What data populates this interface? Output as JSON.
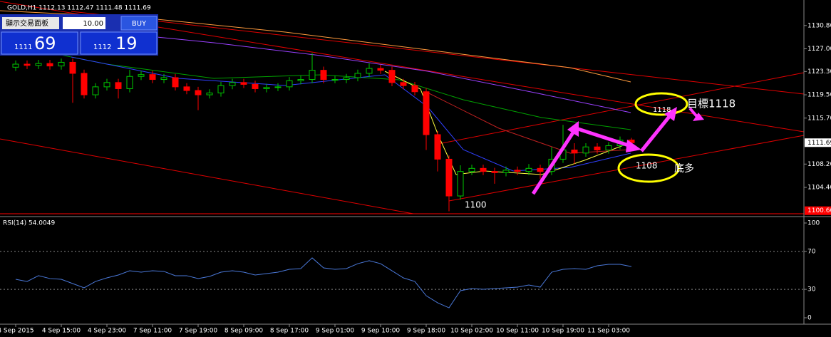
{
  "trade_panel": {
    "toggle": "顯示交易面板",
    "lots": "10.00",
    "buy": "BUY",
    "bid_big": "1111",
    "bid_small": "69",
    "ask_big": "1112",
    "ask_small": "19"
  },
  "annotations": {
    "low": "1100",
    "support": "1108",
    "target_small": "1118",
    "target": "目標1118",
    "buy_low": "底多"
  },
  "chart_data": [
    {
      "type": "candlestick",
      "title": "GOLD,H1  1112.13 1112.47 1111.48 1111.69",
      "categories": [
        "4 Sep 2015",
        null,
        null,
        null,
        "4 Sep 15:00",
        null,
        null,
        null,
        "4 Sep 23:00",
        null,
        null,
        null,
        "7 Sep 11:00",
        null,
        null,
        null,
        "7 Sep 19:00",
        null,
        null,
        null,
        "8 Sep 09:00",
        null,
        null,
        null,
        "8 Sep 17:00",
        null,
        null,
        null,
        "9 Sep 01:00",
        null,
        null,
        null,
        "9 Sep 10:00",
        null,
        null,
        null,
        "9 Sep 18:00",
        null,
        null,
        null,
        "10 Sep 02:00",
        null,
        null,
        null,
        "10 Sep 11:00",
        null,
        null,
        null,
        "10 Sep 19:00",
        null,
        null,
        null,
        "11 Sep 03:00",
        null,
        null
      ],
      "open": [
        1124.0,
        1124.5,
        1124.3,
        1124.6,
        1124.2,
        1124.8,
        1123.0,
        1119.5,
        1120.8,
        1121.5,
        1120.5,
        1122.5,
        1122.8,
        1122.0,
        1122.3,
        1120.8,
        1120.2,
        1119.5,
        1119.8,
        1121.0,
        1121.5,
        1121.2,
        1120.5,
        1120.7,
        1120.8,
        1121.8,
        1122.0,
        1123.5,
        1122.0,
        1122.0,
        1122.3,
        1123.0,
        1123.8,
        1123.5,
        1121.5,
        1121.0,
        1120.0,
        1113.0,
        1109.0,
        1103.0,
        1107.0,
        1107.5,
        1107.0,
        1106.8,
        1107.2,
        1107.0,
        1107.5,
        1107.0,
        1109.0,
        1110.5,
        1110.0,
        1111.0,
        1110.5,
        1111.2,
        1112.13
      ],
      "high": [
        1125.1,
        1125.1,
        1125.2,
        1125.2,
        1125.4,
        1125.4,
        1123.6,
        1121.4,
        1122.1,
        1122.1,
        1123.6,
        1123.4,
        1123.4,
        1122.9,
        1122.9,
        1121.4,
        1120.8,
        1120.4,
        1121.6,
        1122.1,
        1122.1,
        1121.8,
        1121.3,
        1121.4,
        1122.4,
        1122.6,
        1126.3,
        1124.1,
        1122.6,
        1122.9,
        1123.6,
        1124.6,
        1124.4,
        1124.1,
        1122.1,
        1121.6,
        1120.6,
        1113.6,
        1109.6,
        1108.0,
        1108.1,
        1108.1,
        1107.6,
        1107.8,
        1107.8,
        1108.2,
        1108.1,
        1111.0,
        1114.6,
        1111.6,
        1111.6,
        1111.6,
        1111.8,
        1112.7,
        1112.47
      ],
      "low": [
        1123.4,
        1123.7,
        1123.7,
        1123.6,
        1123.6,
        1118.2,
        1118.9,
        1118.9,
        1120.2,
        1118.9,
        1119.9,
        1121.9,
        1121.4,
        1121.4,
        1120.2,
        1119.6,
        1117.0,
        1118.9,
        1119.2,
        1120.4,
        1120.6,
        1119.9,
        1119.9,
        1120.1,
        1120.2,
        1121.2,
        1121.4,
        1121.4,
        1121.4,
        1121.4,
        1121.7,
        1122.4,
        1122.9,
        1120.9,
        1120.4,
        1119.4,
        1110.5,
        1107.0,
        1100.5,
        1102.4,
        1106.4,
        1106.4,
        1105.0,
        1106.2,
        1106.4,
        1106.4,
        1105.8,
        1106.4,
        1108.4,
        1108.2,
        1109.4,
        1109.9,
        1109.9,
        1110.6,
        1111.48
      ],
      "close": [
        1124.5,
        1124.3,
        1124.6,
        1124.2,
        1124.8,
        1123.0,
        1119.5,
        1120.8,
        1121.5,
        1120.5,
        1122.5,
        1122.8,
        1122.0,
        1122.3,
        1120.8,
        1120.2,
        1119.5,
        1119.8,
        1121.0,
        1121.5,
        1121.2,
        1120.5,
        1120.7,
        1120.8,
        1121.8,
        1122.0,
        1123.5,
        1122.0,
        1122.0,
        1122.3,
        1123.0,
        1123.8,
        1123.5,
        1121.5,
        1121.0,
        1120.0,
        1113.0,
        1109.0,
        1103.0,
        1107.0,
        1107.5,
        1107.0,
        1106.8,
        1107.2,
        1107.0,
        1107.5,
        1107.0,
        1109.0,
        1110.5,
        1110.0,
        1111.0,
        1110.5,
        1111.2,
        1112.1,
        1111.69
      ],
      "up_color": "#00c800",
      "down_color": "#ff0000",
      "ylim": [
        1100.1,
        1133.8
      ],
      "yticks": [
        {
          "value": 1130.8,
          "label": "1130.80"
        },
        {
          "value": 1127,
          "label": "1127.00"
        },
        {
          "value": 1123.3,
          "label": "1123.30"
        },
        {
          "value": 1119.5,
          "label": "1119.50"
        },
        {
          "value": 1115.7,
          "label": "1115.70"
        },
        {
          "value": 1108.2,
          "label": "1108.20"
        },
        {
          "value": 1104.4,
          "label": "1104.40"
        }
      ],
      "markers": [
        {
          "value": 1111.69,
          "label": "1111.69",
          "background": "#ffffff",
          "color": "#000000"
        },
        {
          "value": 1100.6,
          "label": "1100.60",
          "background": "#ff0000",
          "color": "#ffffff"
        }
      ]
    },
    {
      "type": "line",
      "title": "RSI(14) 54.0049",
      "color": "#4a78d8",
      "values": [
        40.6,
        38.3,
        44.4,
        41.4,
        40.6,
        36.1,
        31.6,
        38.3,
        42.1,
        45.1,
        49.6,
        48.1,
        49.6,
        48.9,
        44.4,
        44.4,
        41.4,
        43.6,
        48.1,
        49.6,
        48.1,
        45.1,
        46.6,
        48.1,
        51.1,
        51.9,
        63.2,
        52.6,
        51.1,
        51.9,
        57.1,
        60.2,
        57.1,
        49.6,
        42.1,
        38.3,
        23.3,
        15.8,
        10.5,
        28.6,
        30.8,
        30.1,
        30.8,
        31.6,
        32.3,
        34.6,
        32.3,
        48.1,
        51.1,
        51.9,
        51.1,
        54.9,
        56.4,
        56.4,
        54.0049
      ],
      "ylim": [
        0,
        100
      ],
      "yticks": [
        0,
        30,
        70,
        100
      ],
      "levels": [
        30,
        70
      ]
    }
  ]
}
